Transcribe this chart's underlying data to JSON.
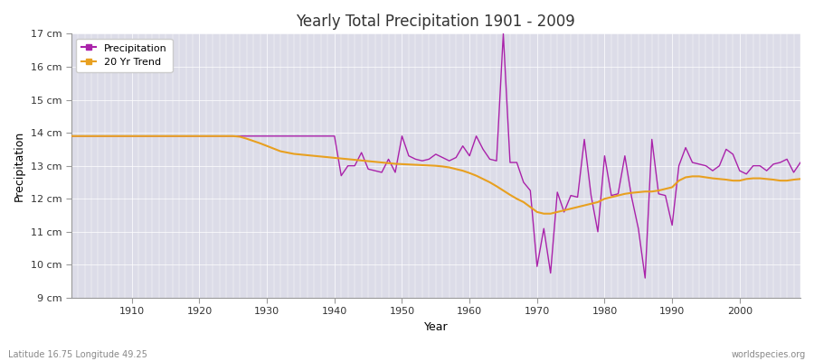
{
  "title": "Yearly Total Precipitation 1901 - 2009",
  "xlabel": "Year",
  "ylabel": "Precipitation",
  "subtitle_left": "Latitude 16.75 Longitude 49.25",
  "subtitle_right": "worldspecies.org",
  "ylim": [
    9,
    17
  ],
  "yticks": [
    9,
    10,
    11,
    12,
    13,
    14,
    15,
    16,
    17
  ],
  "ytick_labels": [
    "9 cm",
    "10 cm",
    "11 cm",
    "12 cm",
    "13 cm",
    "14 cm",
    "15 cm",
    "16 cm",
    "17 cm"
  ],
  "xlim": [
    1901,
    2009
  ],
  "xticks": [
    1910,
    1920,
    1930,
    1940,
    1950,
    1960,
    1970,
    1980,
    1990,
    2000
  ],
  "precip_color": "#aa22aa",
  "trend_color": "#e8a020",
  "bg_color": "#dcdce8",
  "fig_color": "#ffffff",
  "legend_labels": [
    "Precipitation",
    "20 Yr Trend"
  ],
  "years": [
    1901,
    1902,
    1903,
    1904,
    1905,
    1906,
    1907,
    1908,
    1909,
    1910,
    1911,
    1912,
    1913,
    1914,
    1915,
    1916,
    1917,
    1918,
    1919,
    1920,
    1921,
    1922,
    1923,
    1924,
    1925,
    1926,
    1927,
    1928,
    1929,
    1930,
    1931,
    1932,
    1933,
    1934,
    1935,
    1936,
    1937,
    1938,
    1939,
    1940,
    1941,
    1942,
    1943,
    1944,
    1945,
    1946,
    1947,
    1948,
    1949,
    1950,
    1951,
    1952,
    1953,
    1954,
    1955,
    1956,
    1957,
    1958,
    1959,
    1960,
    1961,
    1962,
    1963,
    1964,
    1965,
    1966,
    1967,
    1968,
    1969,
    1970,
    1971,
    1972,
    1973,
    1974,
    1975,
    1976,
    1977,
    1978,
    1979,
    1980,
    1981,
    1982,
    1983,
    1984,
    1985,
    1986,
    1987,
    1988,
    1989,
    1990,
    1991,
    1992,
    1993,
    1994,
    1995,
    1996,
    1997,
    1998,
    1999,
    2000,
    2001,
    2002,
    2003,
    2004,
    2005,
    2006,
    2007,
    2008,
    2009
  ],
  "precipitation": [
    13.9,
    13.9,
    13.9,
    13.9,
    13.9,
    13.9,
    13.9,
    13.9,
    13.9,
    13.9,
    13.9,
    13.9,
    13.9,
    13.9,
    13.9,
    13.9,
    13.9,
    13.9,
    13.9,
    13.9,
    13.9,
    13.9,
    13.9,
    13.9,
    13.9,
    13.9,
    13.9,
    13.9,
    13.9,
    13.9,
    13.9,
    13.9,
    13.9,
    13.9,
    13.9,
    13.9,
    13.9,
    13.9,
    13.9,
    13.9,
    12.7,
    13.0,
    13.0,
    13.4,
    12.9,
    12.85,
    12.8,
    13.2,
    12.8,
    13.9,
    13.3,
    13.2,
    13.15,
    13.2,
    13.35,
    13.25,
    13.15,
    13.25,
    13.6,
    13.3,
    13.9,
    13.5,
    13.2,
    13.15,
    17.0,
    13.1,
    13.1,
    12.5,
    12.25,
    9.95,
    11.1,
    9.75,
    12.2,
    11.6,
    12.1,
    12.05,
    13.8,
    12.1,
    11.0,
    13.3,
    12.1,
    12.15,
    13.3,
    12.05,
    11.1,
    9.6,
    13.8,
    12.15,
    12.1,
    11.2,
    13.0,
    13.55,
    13.1,
    13.05,
    13.0,
    12.85,
    13.0,
    13.5,
    13.35,
    12.85,
    12.75,
    13.0,
    13.0,
    12.85,
    13.05,
    13.1,
    13.2,
    12.8,
    13.1
  ],
  "trend": [
    13.9,
    13.9,
    13.9,
    13.9,
    13.9,
    13.9,
    13.9,
    13.9,
    13.9,
    13.9,
    13.9,
    13.9,
    13.9,
    13.9,
    13.9,
    13.9,
    13.9,
    13.9,
    13.9,
    13.9,
    13.9,
    13.9,
    13.9,
    13.9,
    13.9,
    13.88,
    13.82,
    13.75,
    13.68,
    13.6,
    13.52,
    13.44,
    13.4,
    13.36,
    13.34,
    13.32,
    13.3,
    13.28,
    13.26,
    13.24,
    13.22,
    13.2,
    13.18,
    13.16,
    13.14,
    13.12,
    13.1,
    13.08,
    13.06,
    13.05,
    13.04,
    13.03,
    13.02,
    13.01,
    13.0,
    12.98,
    12.95,
    12.9,
    12.85,
    12.78,
    12.7,
    12.6,
    12.5,
    12.38,
    12.25,
    12.12,
    12.0,
    11.9,
    11.75,
    11.6,
    11.55,
    11.55,
    11.6,
    11.65,
    11.7,
    11.75,
    11.8,
    11.85,
    11.9,
    12.0,
    12.05,
    12.1,
    12.15,
    12.18,
    12.2,
    12.22,
    12.22,
    12.25,
    12.3,
    12.35,
    12.55,
    12.65,
    12.68,
    12.68,
    12.65,
    12.62,
    12.6,
    12.58,
    12.55,
    12.55,
    12.6,
    12.62,
    12.62,
    12.6,
    12.58,
    12.55,
    12.55,
    12.58,
    12.6
  ]
}
